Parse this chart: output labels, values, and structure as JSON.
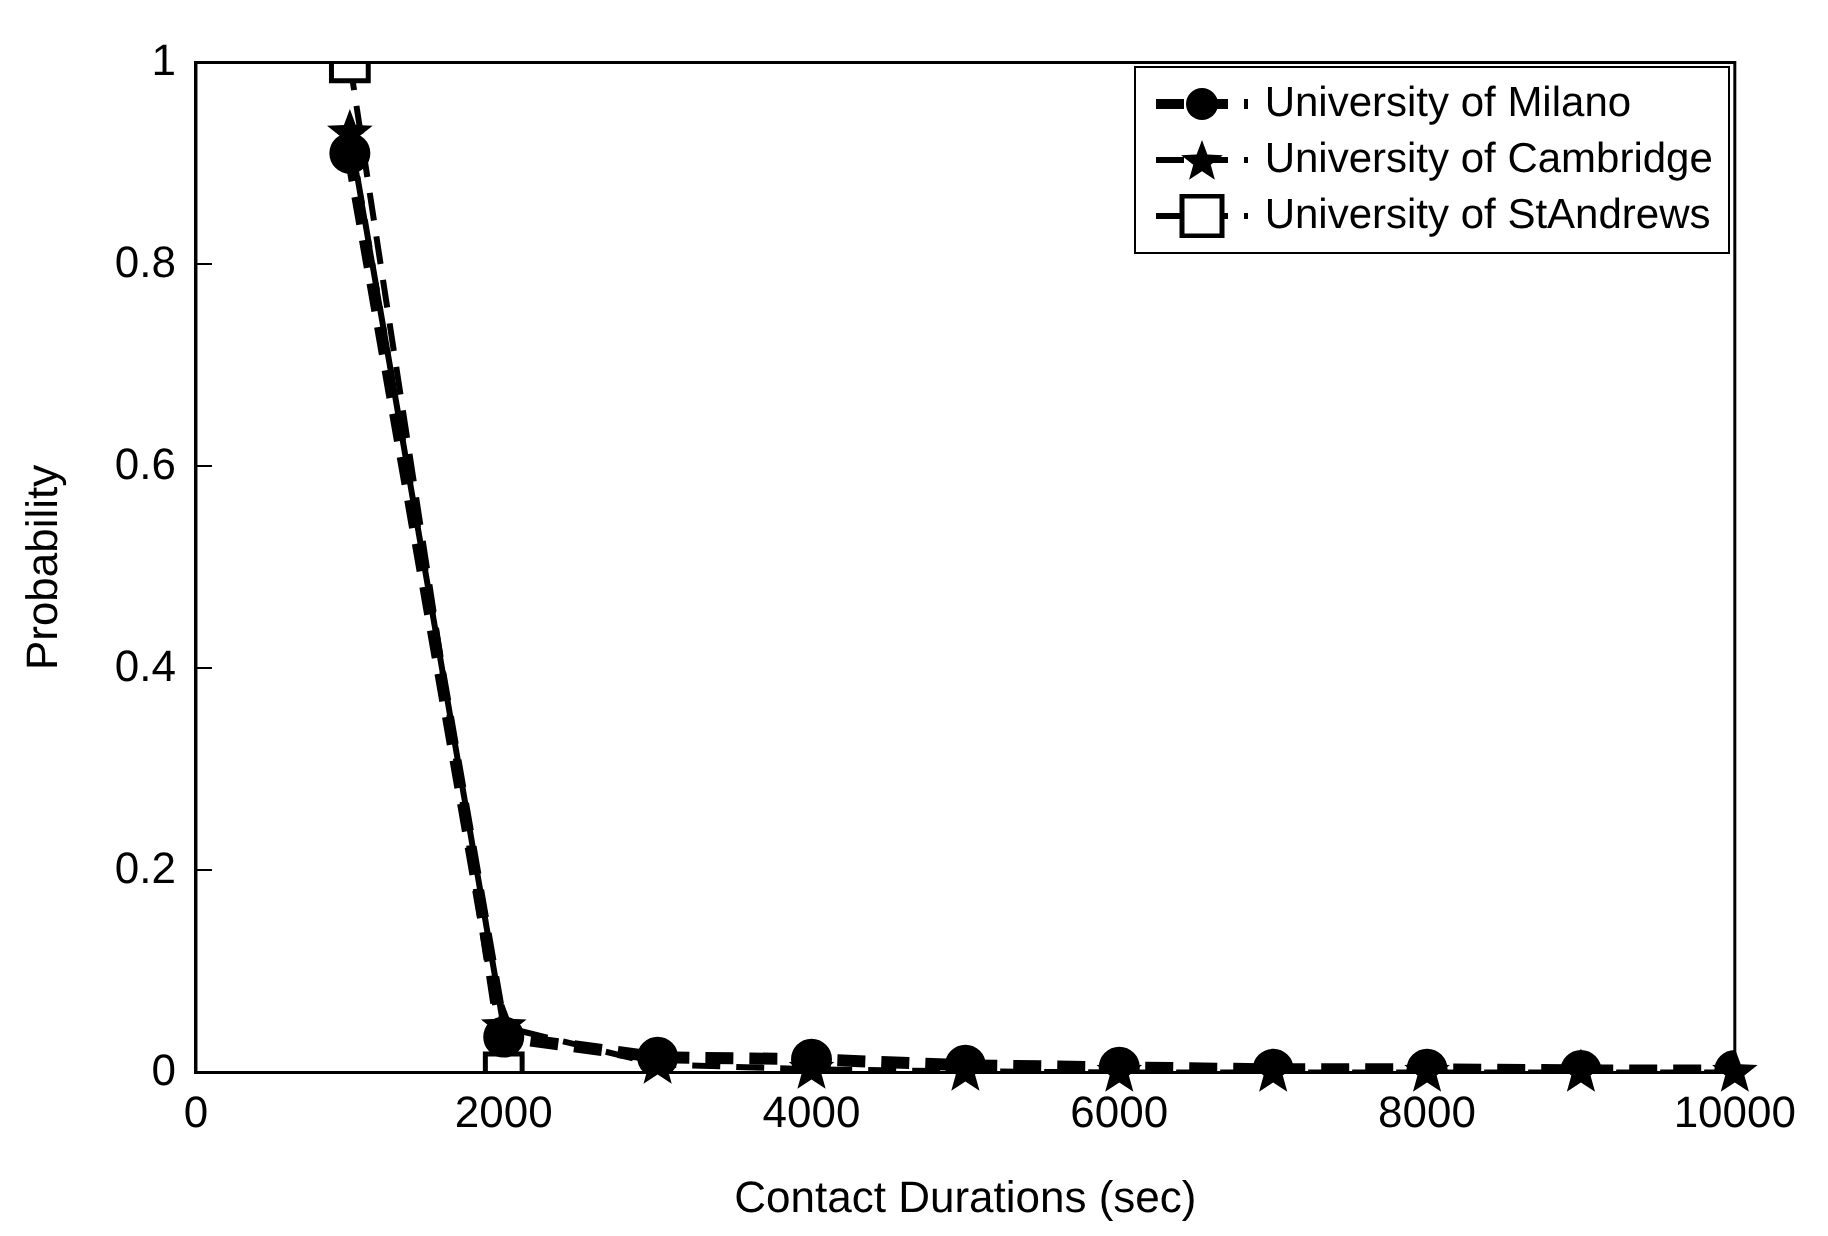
{
  "chart_data": {
    "type": "line",
    "xlabel": "Contact Durations (sec)",
    "ylabel": "Probability",
    "xlim": [
      0,
      10000
    ],
    "xticks": [
      0,
      2000,
      4000,
      6000,
      8000,
      10000
    ],
    "ylim": [
      0,
      1
    ],
    "yticks": [
      0,
      0.2,
      0.4,
      0.6,
      0.8,
      1
    ],
    "grid": false,
    "legend": "top right",
    "line_style": "dashed",
    "x": [
      1000,
      2000,
      3000,
      4000,
      5000,
      6000,
      7000,
      8000,
      9000,
      10000
    ],
    "series": [
      {
        "name": "University of Milano",
        "color": "#000000",
        "marker": "circle",
        "values": [
          0.91,
          0.035,
          0.015,
          0.013,
          0.007,
          0.005,
          0.003,
          0.003,
          0.002,
          0.002
        ]
      },
      {
        "name": "University of Cambridge",
        "color": "#000000",
        "marker": "star",
        "values": [
          0.93,
          0.045,
          0.008,
          0.003,
          0.001,
          0,
          0,
          0,
          0,
          0
        ]
      },
      {
        "name": "University of StAndrews",
        "color": "#000000",
        "marker": "square",
        "x": [
          1000,
          2000
        ],
        "values": [
          1,
          0
        ]
      }
    ]
  }
}
